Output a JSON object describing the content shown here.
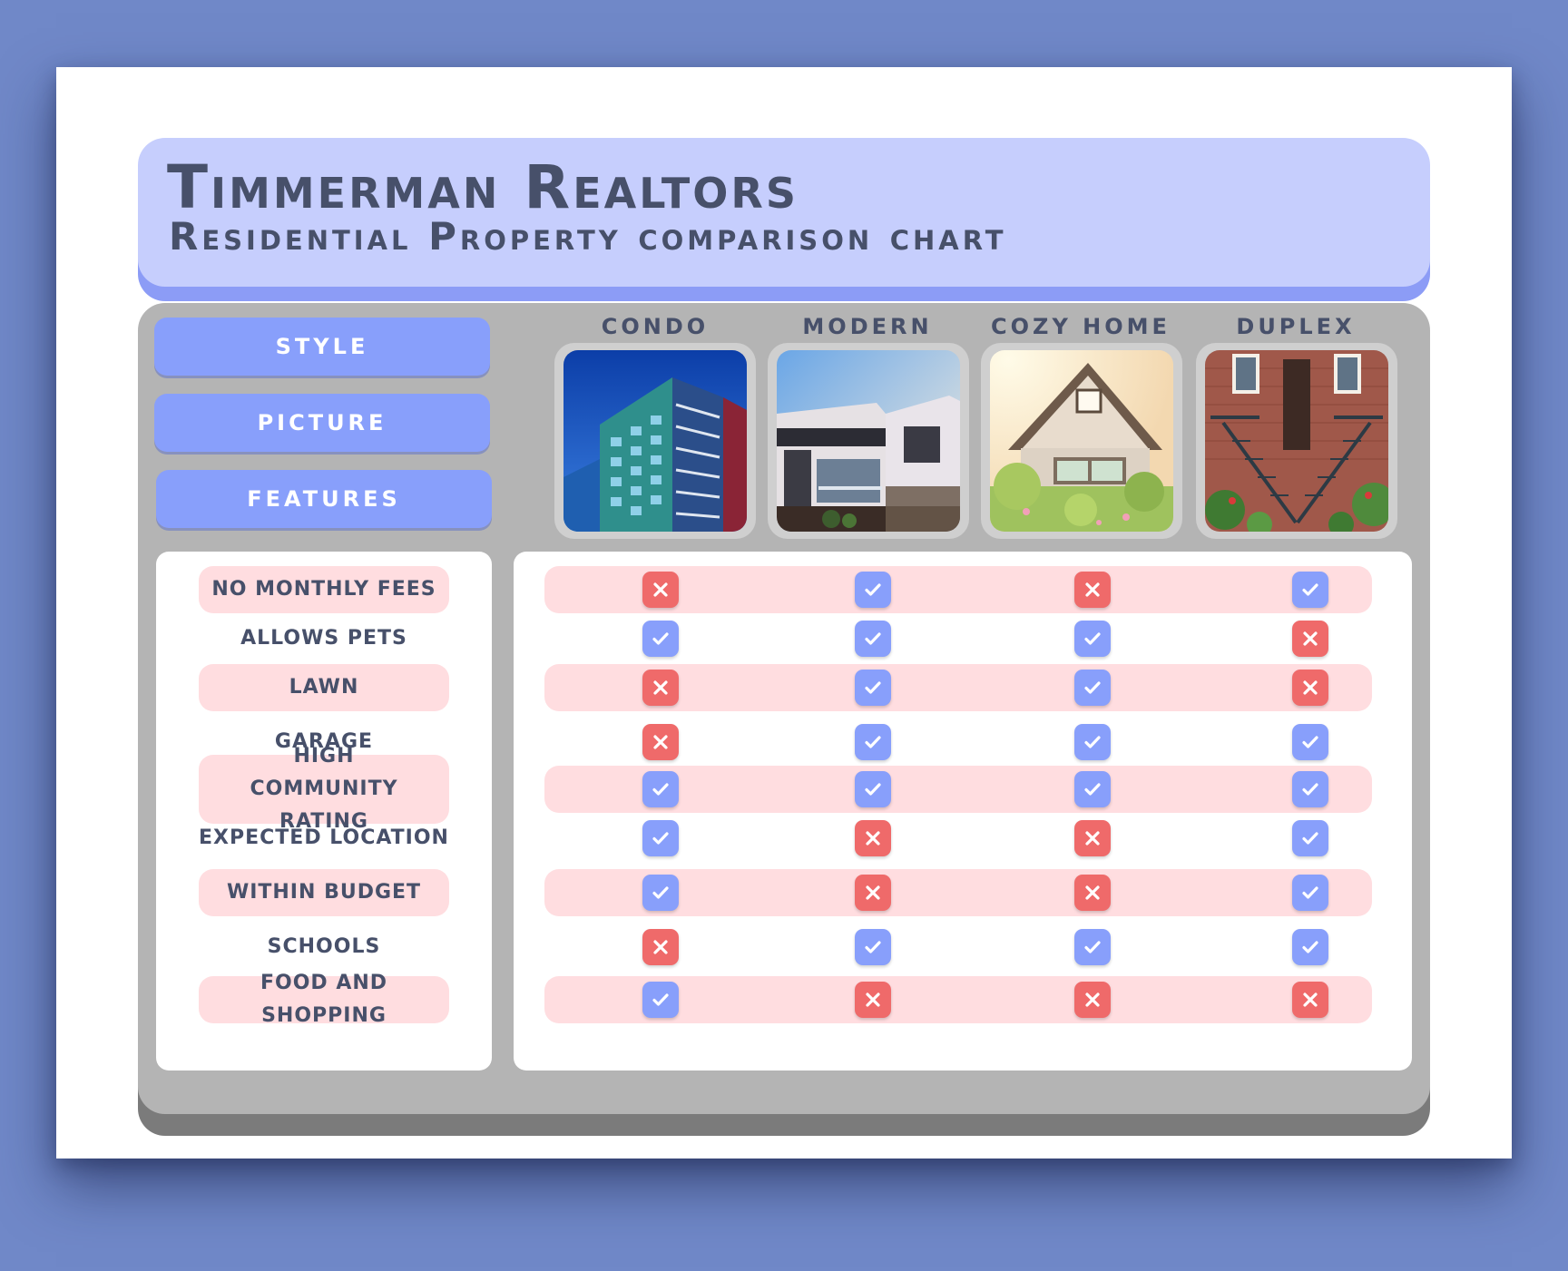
{
  "header": {
    "title": "Timmerman Realtors",
    "subtitle": "Residential Property comparison chart"
  },
  "side_labels": {
    "style": "STYLE",
    "picture": "PICTURE",
    "features": "FEATURES"
  },
  "properties": [
    {
      "name": "CONDO",
      "picture_icon": "condo-building-photo"
    },
    {
      "name": "MODERN",
      "picture_icon": "modern-house-photo"
    },
    {
      "name": "COZY HOME",
      "picture_icon": "cozy-home-photo"
    },
    {
      "name": "DUPLEX",
      "picture_icon": "duplex-brick-photo"
    }
  ],
  "features": [
    {
      "label": "NO MONTHLY FEES",
      "values": [
        false,
        true,
        false,
        true
      ]
    },
    {
      "label": "ALLOWS PETS",
      "values": [
        true,
        true,
        true,
        false
      ]
    },
    {
      "label": "LAWN",
      "values": [
        false,
        true,
        true,
        false
      ]
    },
    {
      "label": "GARAGE",
      "values": [
        false,
        true,
        true,
        true
      ]
    },
    {
      "label": "HIGH COMMUNITY RATING",
      "values": [
        true,
        true,
        true,
        true
      ]
    },
    {
      "label": "EXPECTED LOCATION",
      "values": [
        true,
        false,
        false,
        true
      ]
    },
    {
      "label": "WITHIN BUDGET",
      "values": [
        true,
        false,
        false,
        true
      ]
    },
    {
      "label": "SCHOOLS",
      "values": [
        false,
        true,
        true,
        true
      ]
    },
    {
      "label": "FOOD AND SHOPPING",
      "values": [
        true,
        false,
        false,
        false
      ]
    }
  ],
  "icons": {
    "yes": "checkmark-icon",
    "no": "x-mark-icon"
  },
  "colors": {
    "background": "#7088c8",
    "header": "#c6cefd",
    "accent": "#889ffb",
    "check": "#889ffb",
    "cross": "#ef6a6a",
    "row_highlight": "#ffdde0",
    "panel": "#b4b4b4",
    "text": "#47506a"
  }
}
